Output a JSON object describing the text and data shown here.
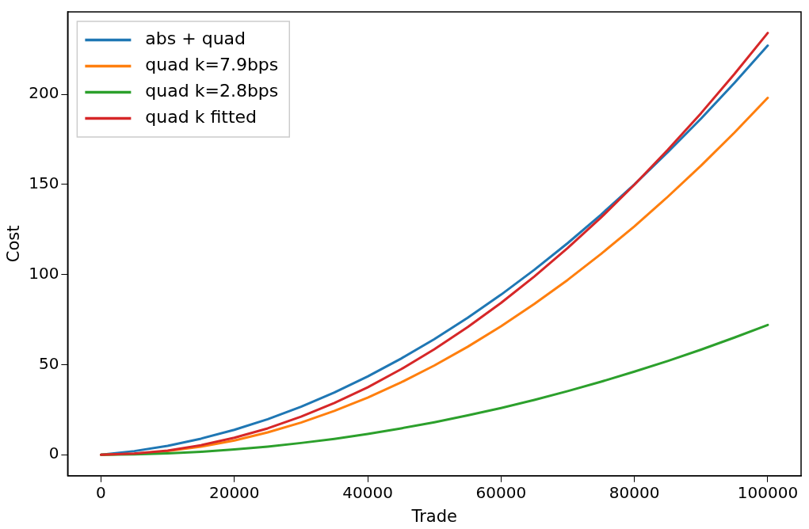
{
  "chart_data": {
    "type": "line",
    "xlabel": "Trade",
    "ylabel": "Cost",
    "x": [
      0,
      5000,
      10000,
      15000,
      20000,
      25000,
      30000,
      35000,
      40000,
      45000,
      50000,
      55000,
      60000,
      65000,
      70000,
      75000,
      80000,
      85000,
      90000,
      95000,
      100000
    ],
    "series": [
      {
        "name": "abs + quad",
        "color": "#1f77b4",
        "values": [
          0,
          2.0,
          4.9,
          8.9,
          13.8,
          19.7,
          26.6,
          34.5,
          43.4,
          53.3,
          64.1,
          76.0,
          88.8,
          102.6,
          117.4,
          133.2,
          150.0,
          167.8,
          186.5,
          206.3,
          227
        ]
      },
      {
        "name": "quad k=7.9bps",
        "color": "#ff7f0e",
        "values": [
          0,
          0.5,
          2.0,
          4.5,
          7.9,
          12.4,
          17.8,
          24.3,
          31.7,
          40.1,
          49.5,
          59.9,
          71.3,
          83.7,
          97.0,
          111.4,
          126.7,
          143.1,
          160.4,
          178.7,
          198
        ]
      },
      {
        "name": "quad k=2.8bps",
        "color": "#2ca02c",
        "values": [
          0,
          0.2,
          0.7,
          1.6,
          2.9,
          4.5,
          6.5,
          8.8,
          11.5,
          14.6,
          18,
          21.8,
          25.9,
          30.4,
          35.3,
          40.5,
          46.1,
          52.0,
          58.3,
          65.0,
          72
        ]
      },
      {
        "name": "quad k fitted",
        "color": "#d62728",
        "values": [
          0,
          0.6,
          2.3,
          5.3,
          9.4,
          14.6,
          21.1,
          28.7,
          37.4,
          47.4,
          58.5,
          70.8,
          84.2,
          98.9,
          114.7,
          131.6,
          149.8,
          169.1,
          189.5,
          211.2,
          234
        ]
      }
    ],
    "xlim": [
      -5000,
      105000
    ],
    "xticks": [
      0,
      20000,
      40000,
      60000,
      80000,
      100000
    ],
    "ylim": [
      -11.7,
      245.7
    ],
    "yticks": [
      0,
      50,
      100,
      150,
      200
    ],
    "grid": false,
    "legend": "top left",
    "marker": "none",
    "line_style": "solid"
  }
}
